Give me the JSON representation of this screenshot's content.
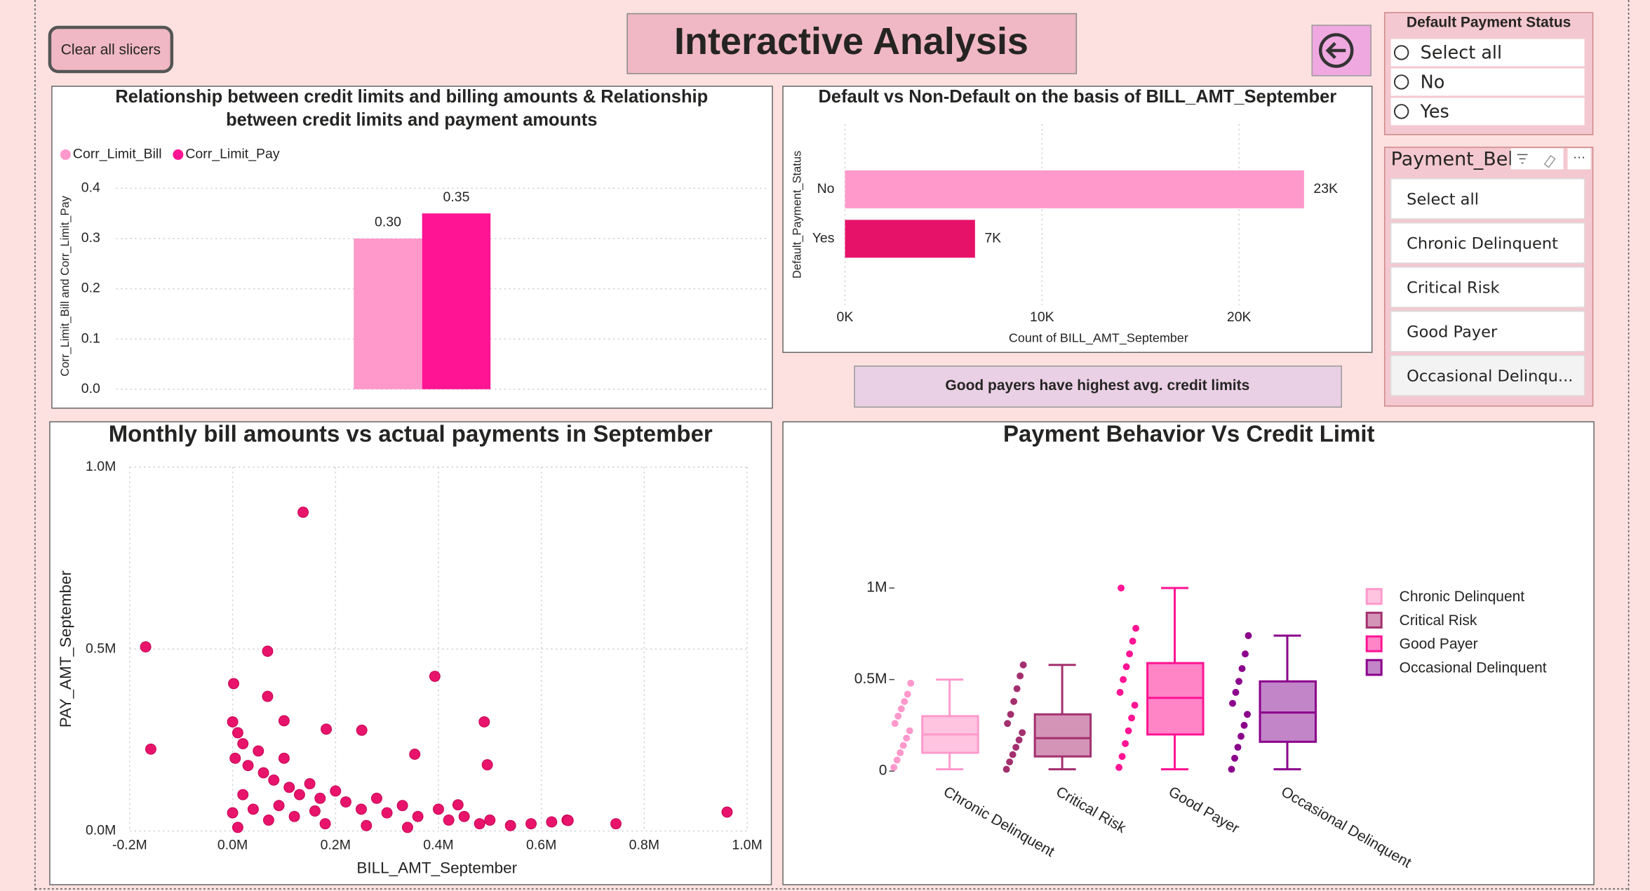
{
  "header": {
    "title": "Interactive Analysis",
    "clear_button": "Clear all slicers"
  },
  "slicers": [
    {
      "title": "Default Payment Status",
      "items": [
        "Select all",
        "No",
        "Yes"
      ]
    },
    {
      "title": "Payment_Beh",
      "items": [
        "Select all",
        "Chronic Delinquent",
        "Critical Risk",
        "Good Payer",
        "Occasional Delinqu..."
      ]
    }
  ],
  "card": {
    "text": "Good payers have highest avg. credit limits"
  },
  "chart_data": [
    {
      "type": "bar",
      "title": [
        "Relationship between credit limits and billing amounts & Relationship",
        "between credit limits and payment amounts"
      ],
      "ylabel": "Corr_Limit_Bill and Corr_Limit_Pay",
      "categories": [
        null
      ],
      "series": [
        {
          "name": "Corr_Limit_Bill",
          "color": "#ff99cc",
          "values": [
            0.3
          ],
          "value_labels": [
            "0.30"
          ]
        },
        {
          "name": "Corr_Limit_Pay",
          "color": "#ff1493",
          "values": [
            0.35
          ],
          "value_labels": [
            "0.35"
          ]
        }
      ],
      "ylim": [
        0,
        0.4
      ],
      "yticks": [
        {
          "value": 0,
          "label": "0.0"
        },
        0.1,
        0.2,
        0.3,
        0.4
      ],
      "grid": true,
      "legend": "top-left"
    },
    {
      "type": "hbar",
      "title": "Default vs Non-Default on the basis of BILL_AMT_September",
      "xlabel": "Count of BILL_AMT_September",
      "ylabel": "Default_Payment_Status",
      "categories": [
        "No",
        "Yes"
      ],
      "values": [
        23300,
        6600
      ],
      "value_labels": [
        "23K",
        "7K"
      ],
      "colors": [
        "#ff99cc",
        "#e6126a"
      ],
      "xlim": [
        0,
        26000
      ],
      "xticks": [
        {
          "value": 0,
          "label": "0K"
        },
        {
          "value": 10000,
          "label": "10K"
        },
        {
          "value": 20000,
          "label": "20K"
        }
      ],
      "grid": true
    },
    {
      "type": "scatter",
      "title": "Monthly bill amounts vs actual payments in September",
      "xlabel": "BILL_AMT_September",
      "ylabel": "PAY_AMT_September",
      "color": "#e8146c",
      "x": [
        0,
        10000,
        20000,
        5000,
        30000,
        50000,
        60000,
        80000,
        100000,
        110000,
        130000,
        150000,
        170000,
        200000,
        220000,
        250000,
        280000,
        300000,
        330000,
        360000,
        400000,
        420000,
        450000,
        480000,
        500000,
        540000,
        580000,
        620000,
        650000,
        20000,
        40000,
        70000,
        120000,
        180000,
        260000,
        340000,
        0,
        10000,
        90000,
        160000,
        137000,
        -169000,
        -159000,
        68000,
        2000,
        68000,
        393000,
        489000,
        354000,
        251000,
        182000,
        100000,
        438000,
        495000,
        745000,
        961000,
        652000
      ],
      "y": [
        300000,
        270000,
        240000,
        200000,
        180000,
        220000,
        160000,
        140000,
        200000,
        120000,
        100000,
        130000,
        90000,
        110000,
        80000,
        60000,
        90000,
        50000,
        70000,
        40000,
        60000,
        30000,
        40000,
        20000,
        30000,
        15000,
        20000,
        25000,
        30000,
        100000,
        60000,
        30000,
        40000,
        20000,
        15000,
        10000,
        50000,
        10000,
        70000,
        55000,
        876000,
        506000,
        225000,
        494000,
        405000,
        370000,
        425000,
        300000,
        211000,
        277000,
        280000,
        303000,
        72000,
        182000,
        20000,
        52000,
        29000
      ],
      "xlim": [
        -200000,
        1000000
      ],
      "xticks": [
        {
          "value": -200000,
          "label": "-0.2M"
        },
        {
          "value": 0,
          "label": "0.0M"
        },
        {
          "value": 200000,
          "label": "0.2M"
        },
        {
          "value": 400000,
          "label": "0.4M"
        },
        {
          "value": 600000,
          "label": "0.6M"
        },
        {
          "value": 800000,
          "label": "0.8M"
        },
        {
          "value": 1000000,
          "label": "1.0M"
        }
      ],
      "ylim": [
        0,
        1000000
      ],
      "yticks": [
        {
          "value": 0,
          "label": "0.0M"
        },
        {
          "value": 500000,
          "label": "0.5M"
        },
        {
          "value": 1000000,
          "label": "1.0M"
        }
      ],
      "grid": true
    },
    {
      "type": "box",
      "title": "Payment Behavior Vs Credit Limit",
      "categories": [
        "Chronic Delinquent",
        "Critical Risk",
        "Good Payer",
        "Occasional Delinquent"
      ],
      "colors": [
        "#ff99cc",
        "#a3306e",
        "#ff1493",
        "#8b008b"
      ],
      "fills": [
        "#ffc4e0",
        "#d494b8",
        "#ff85c6",
        "#c286c8"
      ],
      "min": [
        10000,
        10000,
        10000,
        10000
      ],
      "q1": [
        100000,
        80000,
        200000,
        160000
      ],
      "median": [
        200000,
        180000,
        400000,
        320000
      ],
      "q3": [
        300000,
        310000,
        590000,
        490000
      ],
      "max": [
        500000,
        580000,
        1000000,
        740000
      ],
      "points": [
        [
          20000,
          60000,
          100000,
          140000,
          180000,
          220000,
          260000,
          300000,
          340000,
          380000,
          420000,
          480000
        ],
        [
          10000,
          50000,
          90000,
          130000,
          170000,
          210000,
          260000,
          310000,
          380000,
          450000,
          520000,
          580000
        ],
        [
          20000,
          80000,
          150000,
          220000,
          290000,
          360000,
          430000,
          500000,
          570000,
          640000,
          710000,
          780000,
          1000000
        ],
        [
          10000,
          70000,
          130000,
          190000,
          250000,
          310000,
          370000,
          430000,
          490000,
          560000,
          640000,
          740000
        ]
      ],
      "ylim": [
        0,
        1050000
      ],
      "yticks": [
        0,
        {
          "value": 500000,
          "label": "0.5M"
        },
        {
          "value": 1000000,
          "label": "1M"
        }
      ],
      "legend": "right"
    }
  ]
}
